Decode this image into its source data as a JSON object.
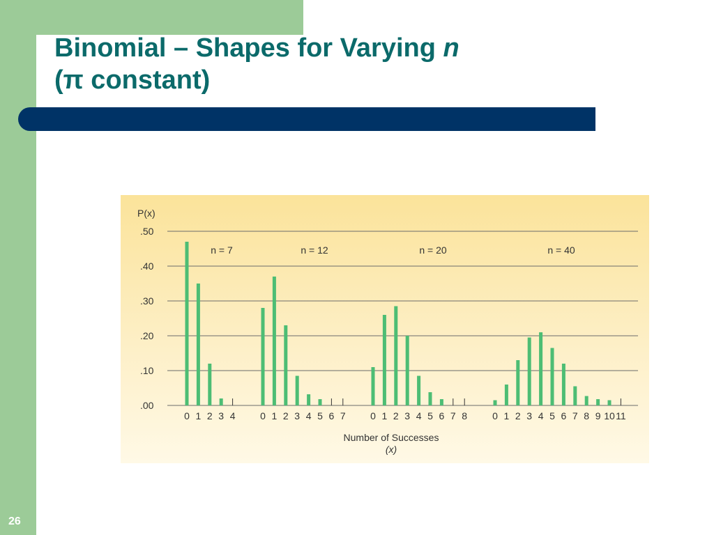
{
  "slide": {
    "title_line1": "Binomial – Shapes for Varying ",
    "title_var": "n",
    "title_line2": "(π constant)",
    "slide_number": "26"
  },
  "colors": {
    "accent_green": "#9ccb98",
    "title_teal": "#0b6a6a",
    "rule_navy": "#003366",
    "bar_green": "#4dbd74"
  },
  "chart_data": {
    "type": "bar",
    "ylabel": "P(x)",
    "xlabel": "Number of Successes",
    "xlabel_var": "(x)",
    "ylim": [
      0,
      0.5
    ],
    "yticks": [
      ".00",
      ".10",
      ".20",
      ".30",
      ".40",
      ".50"
    ],
    "grid": true,
    "panels": [
      {
        "label": "n = 7",
        "categories": [
          "0",
          "1",
          "2",
          "3",
          "4"
        ],
        "values": [
          0.47,
          0.35,
          0.12,
          0.02,
          0.0
        ]
      },
      {
        "label": "n = 12",
        "categories": [
          "0",
          "1",
          "2",
          "3",
          "4",
          "5",
          "6",
          "7"
        ],
        "values": [
          0.28,
          0.37,
          0.23,
          0.085,
          0.032,
          0.018,
          0.0,
          0.0
        ]
      },
      {
        "label": "n = 20",
        "categories": [
          "0",
          "1",
          "2",
          "3",
          "4",
          "5",
          "6",
          "7",
          "8"
        ],
        "values": [
          0.11,
          0.26,
          0.285,
          0.2,
          0.085,
          0.038,
          0.018,
          0.0,
          0.0
        ]
      },
      {
        "label": "n = 40",
        "categories": [
          "0",
          "1",
          "2",
          "3",
          "4",
          "5",
          "6",
          "7",
          "8",
          "9",
          "10",
          "11"
        ],
        "values": [
          0.015,
          0.06,
          0.13,
          0.195,
          0.21,
          0.165,
          0.12,
          0.055,
          0.027,
          0.018,
          0.015,
          0.0
        ]
      }
    ]
  }
}
